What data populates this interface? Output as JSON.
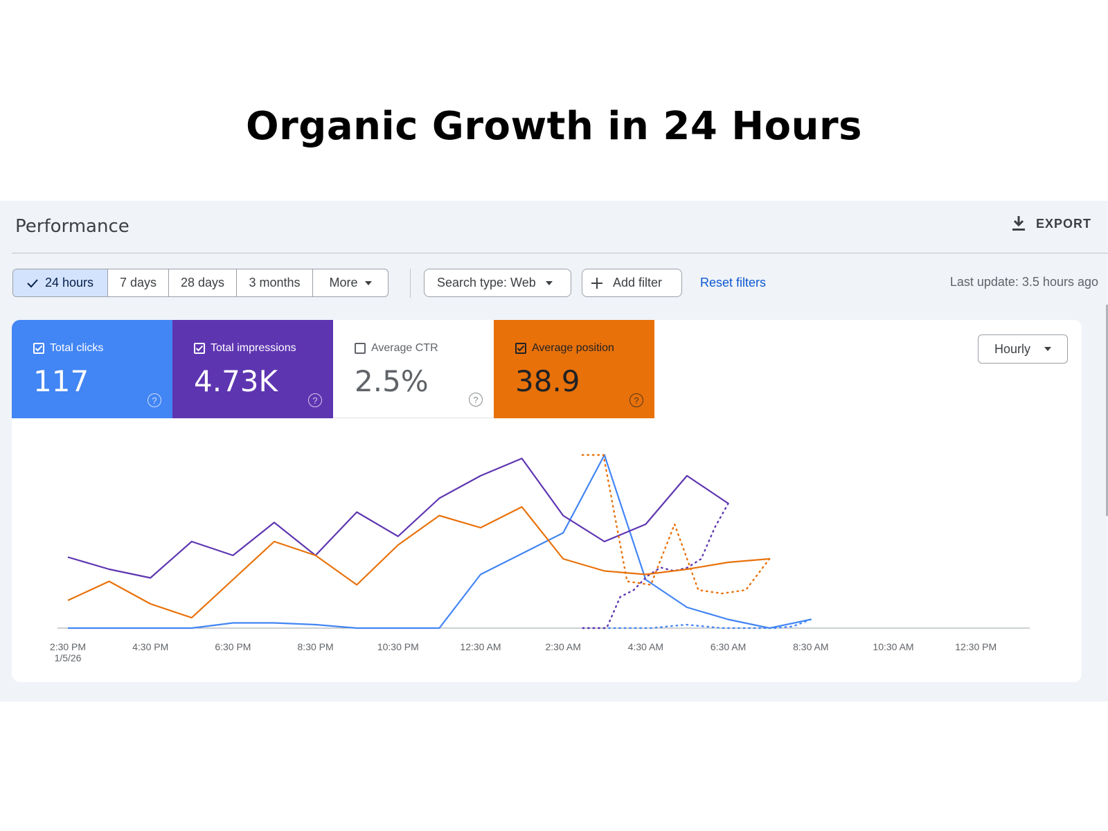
{
  "headline": "Organic Growth in 24 Hours",
  "header": {
    "title": "Performance",
    "export_label": "EXPORT"
  },
  "filters": {
    "ranges": [
      "24 hours",
      "7 days",
      "28 days",
      "3 months",
      "More"
    ],
    "active_range": "24 hours",
    "search_type": "Search type: Web",
    "add_filter": "Add filter",
    "reset": "Reset filters",
    "last_update": "Last update: 3.5 hours ago"
  },
  "metrics": {
    "clicks": {
      "label": "Total clicks",
      "value": "117",
      "checked": true,
      "color": "#4285f4"
    },
    "impressions": {
      "label": "Total impressions",
      "value": "4.73K",
      "checked": true,
      "color": "#5e35b1"
    },
    "ctr": {
      "label": "Average CTR",
      "value": "2.5%",
      "checked": false,
      "color": "#ffffff"
    },
    "position": {
      "label": "Average position",
      "value": "38.9",
      "checked": true,
      "color": "#e8710a"
    }
  },
  "granularity": "Hourly",
  "chart_data": {
    "type": "line",
    "x_ticks": [
      "2:30 PM",
      "4:30 PM",
      "6:30 PM",
      "8:30 PM",
      "10:30 PM",
      "12:30 AM",
      "2:30 AM",
      "4:30 AM",
      "6:30 AM",
      "8:30 AM",
      "10:30 AM",
      "12:30 PM"
    ],
    "x_tick_sublabel": "1/5/26",
    "grid": false,
    "legend": "none",
    "series": [
      {
        "color": "#4285f4",
        "values": [
          0,
          0,
          0,
          0,
          3,
          3,
          2,
          0,
          0,
          0,
          31,
          43,
          55,
          100,
          28,
          12,
          5,
          0,
          5
        ],
        "partial_values": [
          5,
          1,
          0,
          0,
          0,
          0,
          1,
          2,
          1,
          0,
          0,
          0,
          0,
          0
        ]
      },
      {
        "color": "#5e35b1",
        "values": [
          41,
          34,
          29,
          50,
          42,
          61,
          42,
          67,
          53,
          75,
          88,
          98,
          65,
          50,
          60,
          88,
          72
        ],
        "partial_values": [
          72,
          58,
          40,
          35,
          33,
          35,
          30,
          22,
          18,
          0,
          0,
          0
        ]
      },
      {
        "color": "#e8710a",
        "values": [
          16,
          27,
          14,
          6,
          28,
          50,
          42,
          25,
          48,
          65,
          58,
          70,
          40,
          33,
          31,
          34,
          38,
          40
        ],
        "partial_values": [
          40,
          22,
          20,
          22,
          60,
          25,
          27,
          100,
          100
        ]
      }
    ]
  }
}
